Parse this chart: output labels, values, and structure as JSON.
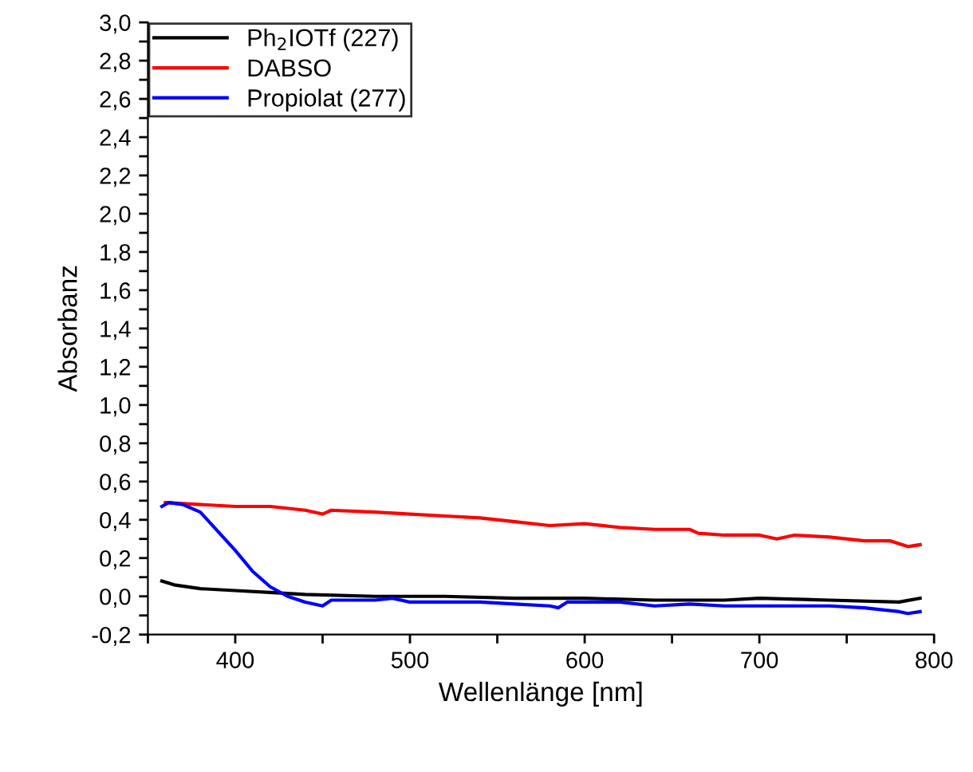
{
  "chart_data": {
    "type": "line",
    "xlabel": "Wellenlänge [nm]",
    "ylabel": "Absorbanz",
    "xlim": [
      350,
      800
    ],
    "ylim": [
      -0.2,
      3.0
    ],
    "xticks": [
      {
        "value": 350,
        "label": null
      },
      400,
      {
        "value": 450,
        "label": null
      },
      500,
      {
        "value": 550,
        "label": null
      },
      600,
      {
        "value": 650,
        "label": null
      },
      700,
      {
        "value": 750,
        "label": null
      },
      800
    ],
    "yticks": [
      {
        "value": -0.2,
        "label": "-0,2"
      },
      {
        "value": -0.1,
        "label": null
      },
      {
        "value": 0.0,
        "label": "0,0"
      },
      {
        "value": 0.1,
        "label": null
      },
      {
        "value": 0.2,
        "label": "0,2"
      },
      {
        "value": 0.3,
        "label": null
      },
      {
        "value": 0.4,
        "label": "0,4"
      },
      {
        "value": 0.5,
        "label": null
      },
      {
        "value": 0.6,
        "label": "0,6"
      },
      {
        "value": 0.7,
        "label": null
      },
      {
        "value": 0.8,
        "label": "0,8"
      },
      {
        "value": 0.9,
        "label": null
      },
      {
        "value": 1.0,
        "label": "1,0"
      },
      {
        "value": 1.1,
        "label": null
      },
      {
        "value": 1.2,
        "label": "1,2"
      },
      {
        "value": 1.3,
        "label": null
      },
      {
        "value": 1.4,
        "label": "1,4"
      },
      {
        "value": 1.5,
        "label": null
      },
      {
        "value": 1.6,
        "label": "1,6"
      },
      {
        "value": 1.7,
        "label": null
      },
      {
        "value": 1.8,
        "label": "1,8"
      },
      {
        "value": 1.9,
        "label": null
      },
      {
        "value": 2.0,
        "label": "2,0"
      },
      {
        "value": 2.1,
        "label": null
      },
      {
        "value": 2.2,
        "label": "2,2"
      },
      {
        "value": 2.3,
        "label": null
      },
      {
        "value": 2.4,
        "label": "2,4"
      },
      {
        "value": 2.5,
        "label": null
      },
      {
        "value": 2.6,
        "label": "2,6"
      },
      {
        "value": 2.7,
        "label": null
      },
      {
        "value": 2.8,
        "label": "2,8"
      },
      {
        "value": 2.9,
        "label": null
      },
      {
        "value": 3.0,
        "label": "3,0"
      }
    ],
    "grid": false,
    "legend": "top left",
    "marker": "none",
    "line_style": "solid",
    "series": [
      {
        "name": "Ph$_{2}$IOTf (227)",
        "color": "#000000",
        "x": [
          358,
          365,
          380,
          400,
          420,
          440,
          480,
          520,
          560,
          600,
          640,
          680,
          700,
          740,
          780,
          792
        ],
        "values": [
          0.08,
          0.06,
          0.04,
          0.03,
          0.02,
          0.01,
          0.0,
          0.0,
          -0.01,
          -0.01,
          -0.02,
          -0.02,
          -0.01,
          -0.02,
          -0.03,
          -0.01
        ]
      },
      {
        "name": "DABSO",
        "color": "#ff0000",
        "x": [
          360,
          380,
          400,
          420,
          440,
          450,
          455,
          480,
          500,
          520,
          540,
          560,
          580,
          600,
          620,
          640,
          660,
          665,
          680,
          700,
          710,
          720,
          740,
          760,
          775,
          785,
          792
        ],
        "values": [
          0.49,
          0.48,
          0.47,
          0.47,
          0.45,
          0.43,
          0.45,
          0.44,
          0.43,
          0.42,
          0.41,
          0.39,
          0.37,
          0.38,
          0.36,
          0.35,
          0.35,
          0.33,
          0.32,
          0.32,
          0.3,
          0.32,
          0.31,
          0.29,
          0.29,
          0.26,
          0.27
        ]
      },
      {
        "name": "Propiolat (277)",
        "color": "#0000ff",
        "x": [
          358,
          362,
          370,
          380,
          390,
          400,
          410,
          420,
          430,
          440,
          450,
          455,
          480,
          490,
          500,
          540,
          560,
          580,
          585,
          590,
          620,
          640,
          660,
          680,
          700,
          720,
          740,
          760,
          780,
          785,
          792
        ],
        "values": [
          0.47,
          0.49,
          0.48,
          0.44,
          0.34,
          0.24,
          0.13,
          0.05,
          0.0,
          -0.03,
          -0.05,
          -0.02,
          -0.02,
          -0.01,
          -0.03,
          -0.03,
          -0.04,
          -0.05,
          -0.06,
          -0.03,
          -0.03,
          -0.05,
          -0.04,
          -0.05,
          -0.05,
          -0.05,
          -0.05,
          -0.06,
          -0.08,
          -0.09,
          -0.08
        ]
      }
    ]
  }
}
